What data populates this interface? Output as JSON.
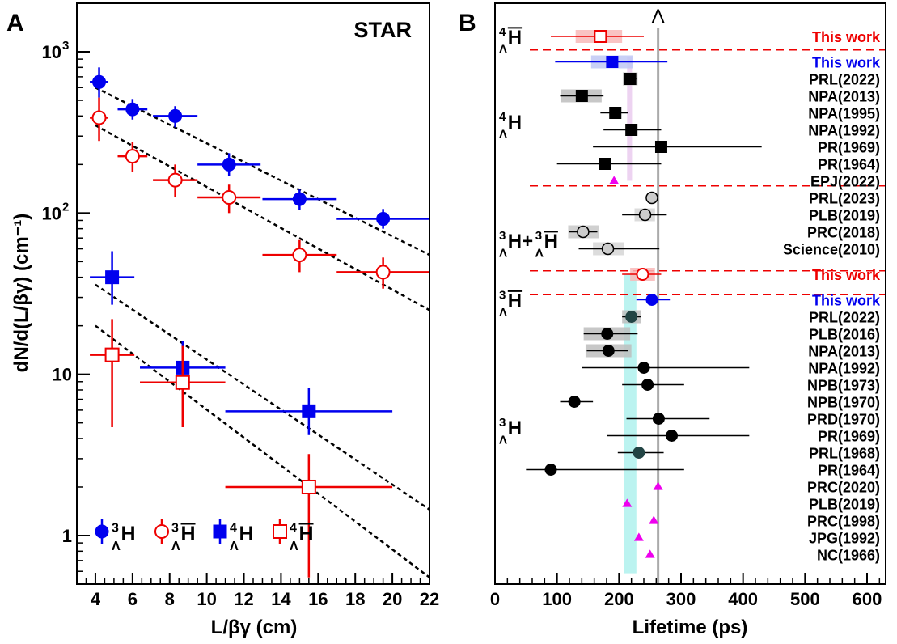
{
  "chart_data": [
    {
      "panel_label": "A",
      "type": "scatter",
      "annotation": "STAR",
      "xlabel": "L/βγ (cm)",
      "ylabel": "dN/d(L/βγ) (cm⁻¹)",
      "xlim": [
        3,
        22
      ],
      "ylim": [
        0.5,
        2000
      ],
      "yscale": "log",
      "xticks": [
        4,
        6,
        8,
        10,
        12,
        14,
        16,
        18,
        20,
        22
      ],
      "yticks": [
        {
          "value": 1,
          "label": "1",
          "exp": ""
        },
        {
          "value": 10,
          "label": "10",
          "exp": ""
        },
        {
          "value": 100,
          "label": "10",
          "exp": "2"
        },
        {
          "value": 1000,
          "label": "10",
          "exp": "3"
        }
      ],
      "legend_position": "bottom",
      "series": [
        {
          "name": "³ΛH",
          "legend_main": "H",
          "legend_sup": "3",
          "legend_sub": "Λ",
          "legend_bar": false,
          "color": "#0000ee",
          "marker": "circle",
          "filled": true,
          "points": [
            {
              "x": 4.2,
              "y": 650,
              "xerr": [
                0.5,
                0.5
              ],
              "yerr": [
                520,
                800
              ]
            },
            {
              "x": 6.0,
              "y": 440,
              "xerr": [
                0.8,
                0.8
              ],
              "yerr": [
                380,
                510
              ]
            },
            {
              "x": 8.3,
              "y": 400,
              "xerr": [
                1.2,
                1.2
              ],
              "yerr": [
                340,
                460
              ]
            },
            {
              "x": 11.2,
              "y": 200,
              "xerr": [
                1.7,
                1.7
              ],
              "yerr": [
                170,
                235
              ]
            },
            {
              "x": 15.0,
              "y": 122,
              "xerr": [
                2.0,
                2.0
              ],
              "yerr": [
                105,
                140
              ]
            },
            {
              "x": 19.5,
              "y": 92,
              "xerr": [
                2.5,
                2.5
              ],
              "yerr": [
                80,
                106
              ]
            }
          ]
        },
        {
          "name": "³ΛH̄",
          "legend_main": "H",
          "legend_sup": "3",
          "legend_sub": "Λ",
          "legend_bar": true,
          "color": "#ee0000",
          "marker": "circle",
          "filled": false,
          "points": [
            {
              "x": 4.2,
              "y": 390,
              "xerr": [
                0.5,
                0.5
              ],
              "yerr": [
                280,
                520
              ]
            },
            {
              "x": 6.0,
              "y": 225,
              "xerr": [
                0.8,
                0.8
              ],
              "yerr": [
                180,
                275
              ]
            },
            {
              "x": 8.3,
              "y": 160,
              "xerr": [
                1.2,
                1.2
              ],
              "yerr": [
                125,
                200
              ]
            },
            {
              "x": 11.2,
              "y": 125,
              "xerr": [
                1.7,
                1.7
              ],
              "yerr": [
                100,
                150
              ]
            },
            {
              "x": 15.0,
              "y": 55,
              "xerr": [
                2.0,
                2.0
              ],
              "yerr": [
                43,
                68
              ]
            },
            {
              "x": 19.5,
              "y": 43,
              "xerr": [
                2.5,
                2.5
              ],
              "yerr": [
                34,
                53
              ]
            }
          ]
        },
        {
          "name": "⁴ΛH",
          "legend_main": "H",
          "legend_sup": "4",
          "legend_sub": "Λ",
          "legend_bar": false,
          "color": "#0000ee",
          "marker": "square",
          "filled": true,
          "points": [
            {
              "x": 4.9,
              "y": 40,
              "xerr": [
                1.2,
                1.2
              ],
              "yerr": [
                27,
                58
              ]
            },
            {
              "x": 8.7,
              "y": 11,
              "xerr": [
                2.3,
                2.3
              ],
              "yerr": [
                7.5,
                16
              ]
            },
            {
              "x": 15.5,
              "y": 5.9,
              "xerr": [
                4.5,
                4.5
              ],
              "yerr": [
                4.2,
                8.2
              ]
            }
          ]
        },
        {
          "name": "⁴ΛH̄",
          "legend_main": "H",
          "legend_sup": "4",
          "legend_sub": "Λ",
          "legend_bar": true,
          "color": "#ee0000",
          "marker": "square",
          "filled": false,
          "points": [
            {
              "x": 4.9,
              "y": 13.2,
              "xerr": [
                1.2,
                1.2
              ],
              "yerr": [
                4.7,
                22
              ]
            },
            {
              "x": 8.7,
              "y": 8.9,
              "xerr": [
                2.3,
                2.3
              ],
              "yerr": [
                4.7,
                15
              ]
            },
            {
              "x": 15.5,
              "y": 2.0,
              "xerr": [
                4.5,
                4.5
              ],
              "yerr": [
                0.55,
                3.2
              ]
            }
          ]
        }
      ],
      "fit_lines": [
        {
          "x": [
            4,
            22
          ],
          "y": [
            600,
            55
          ]
        },
        {
          "x": [
            4,
            22
          ],
          "y": [
            350,
            25
          ]
        },
        {
          "x": [
            4,
            22
          ],
          "y": [
            36,
            1.45
          ]
        },
        {
          "x": [
            4,
            22
          ],
          "y": [
            20,
            0.55
          ]
        }
      ]
    },
    {
      "panel_label": "B",
      "type": "scatter",
      "xlabel": "Lifetime (ps)",
      "xlim": [
        0,
        630
      ],
      "xticks": [
        0,
        100,
        200,
        300,
        400,
        500,
        600
      ],
      "reference_line": {
        "label": "Λ",
        "x": 263
      },
      "group_labels": [
        {
          "main": "H",
          "sup": "4",
          "sub": "Λ",
          "bar": true,
          "slot": 0
        },
        {
          "main": "H",
          "sup": "4",
          "sub": "Λ",
          "bar": false,
          "slot": 5
        },
        {
          "main": "H+",
          "sup": "3",
          "sub": "Λ",
          "bar": false,
          "slot": 12,
          "extra": {
            "main": "H",
            "sup": "3",
            "sub": "Λ",
            "bar": true
          }
        },
        {
          "main": "H",
          "sup": "3",
          "sub": "Λ",
          "bar": true,
          "slot": 15.5
        },
        {
          "main": "H",
          "sup": "3",
          "sub": "Λ",
          "bar": false,
          "slot": 23
        }
      ],
      "dashed_separators": [
        0.8,
        8.8,
        13.8,
        15.2
      ],
      "bands": [
        {
          "x0": 213,
          "x1": 221,
          "slot0": 1.2,
          "slot1": 8.5,
          "color": "#e8c8ee"
        },
        {
          "x0": 208,
          "x1": 228,
          "slot0": 14.0,
          "slot1": 31.6,
          "color": "#aaf0ec"
        }
      ],
      "entries": [
        {
          "label": "This work",
          "label_color": "#ee0000",
          "slot": 0,
          "value": 170,
          "err": [
            90,
            240
          ],
          "sys": [
            130,
            205
          ],
          "marker": "square",
          "filled": false,
          "color": "#ee0000",
          "sys_color": "#f8b8b8"
        },
        {
          "label": "This work",
          "label_color": "#0000ee",
          "slot": 1.5,
          "value": 189,
          "err": [
            97,
            278
          ],
          "sys": [
            155,
            222
          ],
          "marker": "square",
          "filled": true,
          "color": "#0000ee",
          "sys_color": "#c0c8f4"
        },
        {
          "label": "PRL(2022)",
          "label_color": "#000000",
          "slot": 2.5,
          "value": 218,
          "err": [
            208,
            228
          ],
          "sys": [
            206,
            230
          ],
          "marker": "square",
          "filled": true,
          "color": "#000000",
          "sys_color": "#bdbdbd"
        },
        {
          "label": "NPA(2013)",
          "label_color": "#000000",
          "slot": 3.5,
          "value": 140,
          "err": [
            105,
            175
          ],
          "sys": [
            106,
            172
          ],
          "marker": "square",
          "filled": true,
          "color": "#000000",
          "sys_color": "#bdbdbd"
        },
        {
          "label": "NPA(1995)",
          "label_color": "#000000",
          "slot": 4.5,
          "value": 194,
          "err": [
            170,
            215
          ],
          "sys": null,
          "marker": "square",
          "filled": true,
          "color": "#000000",
          "sys_color": null
        },
        {
          "label": "NPA(1992)",
          "label_color": "#000000",
          "slot": 5.5,
          "value": 220,
          "err": [
            175,
            268
          ],
          "sys": null,
          "marker": "square",
          "filled": true,
          "color": "#000000",
          "sys_color": null
        },
        {
          "label": "PR(1969)",
          "label_color": "#000000",
          "slot": 6.5,
          "value": 268,
          "err": [
            158,
            430
          ],
          "sys": null,
          "marker": "square",
          "filled": true,
          "color": "#000000",
          "sys_color": null
        },
        {
          "label": "PR(1964)",
          "label_color": "#000000",
          "slot": 7.5,
          "value": 178,
          "err": [
            100,
            268
          ],
          "sys": null,
          "marker": "square",
          "filled": true,
          "color": "#000000",
          "sys_color": null
        },
        {
          "label": "EPJ(2022)",
          "label_color": "#000000",
          "slot": 8.5,
          "value": 192,
          "err": null,
          "sys": null,
          "marker": "triangle",
          "filled": true,
          "color": "#ee00ee",
          "sys_color": null
        },
        {
          "label": "PRL(2023)",
          "label_color": "#000000",
          "slot": 9.5,
          "value": 253,
          "err": [
            245,
            262
          ],
          "sys": null,
          "marker": "circle",
          "filled": true,
          "color": "#cccccc",
          "sys_color": null
        },
        {
          "label": "PLB(2019)",
          "label_color": "#000000",
          "slot": 10.5,
          "value": 242,
          "err": [
            205,
            277
          ],
          "sys": [
            225,
            258
          ],
          "marker": "circle",
          "filled": true,
          "color": "#cccccc",
          "sys_color": "#d6d6d6"
        },
        {
          "label": "PRC(2018)",
          "label_color": "#000000",
          "slot": 11.5,
          "value": 142,
          "err": [
            120,
            165
          ],
          "sys": [
            118,
            168
          ],
          "marker": "circle",
          "filled": true,
          "color": "#cccccc",
          "sys_color": "#c8c8c8"
        },
        {
          "label": "Science(2010)",
          "label_color": "#000000",
          "slot": 12.5,
          "value": 182,
          "err": [
            135,
            265
          ],
          "sys": [
            158,
            208
          ],
          "marker": "circle",
          "filled": true,
          "color": "#cccccc",
          "sys_color": "#d6d6d6"
        },
        {
          "label": "This work",
          "label_color": "#ee0000",
          "slot": 14.0,
          "value": 238,
          "err": [
            205,
            268
          ],
          "sys": [
            218,
            258
          ],
          "marker": "circle",
          "filled": false,
          "color": "#ee0000",
          "sys_color": "#f8b8b8"
        },
        {
          "label": "This work",
          "label_color": "#0000ee",
          "slot": 15.5,
          "value": 253,
          "err": [
            228,
            282
          ],
          "sys": null,
          "marker": "circle",
          "filled": true,
          "color": "#0000ee",
          "sys_color": null
        },
        {
          "label": "PRL(2022)",
          "label_color": "#000000",
          "slot": 16.5,
          "value": 220,
          "err": [
            205,
            236
          ],
          "sys": [
            205,
            235
          ],
          "marker": "circle",
          "filled": true,
          "color": "#224444",
          "sys_color": "#bdbdbd"
        },
        {
          "label": "PLB(2016)",
          "label_color": "#000000",
          "slot": 17.5,
          "value": 181,
          "err": [
            143,
            230
          ],
          "sys": [
            143,
            218
          ],
          "marker": "circle",
          "filled": true,
          "color": "#000000",
          "sys_color": "#bdbdbd"
        },
        {
          "label": "NPA(2013)",
          "label_color": "#000000",
          "slot": 18.5,
          "value": 183,
          "err": [
            148,
            215
          ],
          "sys": [
            146,
            220
          ],
          "marker": "circle",
          "filled": true,
          "color": "#000000",
          "sys_color": "#bdbdbd"
        },
        {
          "label": "NPA(1992)",
          "label_color": "#000000",
          "slot": 19.5,
          "value": 240,
          "err": [
            140,
            410
          ],
          "sys": null,
          "marker": "circle",
          "filled": true,
          "color": "#000000",
          "sys_color": null
        },
        {
          "label": "NPB(1973)",
          "label_color": "#000000",
          "slot": 20.5,
          "value": 246,
          "err": [
            205,
            305
          ],
          "sys": null,
          "marker": "circle",
          "filled": true,
          "color": "#000000",
          "sys_color": null
        },
        {
          "label": "NPB(1970)",
          "label_color": "#000000",
          "slot": 21.5,
          "value": 128,
          "err": [
            105,
            158
          ],
          "sys": null,
          "marker": "circle",
          "filled": true,
          "color": "#000000",
          "sys_color": null
        },
        {
          "label": "PRD(1970)",
          "label_color": "#000000",
          "slot": 22.5,
          "value": 264,
          "err": [
            212,
            346
          ],
          "sys": null,
          "marker": "circle",
          "filled": true,
          "color": "#000000",
          "sys_color": null
        },
        {
          "label": "PR(1969)",
          "label_color": "#000000",
          "slot": 23.5,
          "value": 285,
          "err": [
            180,
            410
          ],
          "sys": null,
          "marker": "circle",
          "filled": true,
          "color": "#000000",
          "sys_color": null
        },
        {
          "label": "PRL(1968)",
          "label_color": "#000000",
          "slot": 24.5,
          "value": 232,
          "err": [
            198,
            272
          ],
          "sys": null,
          "marker": "circle",
          "filled": true,
          "color": "#224444",
          "sys_color": null
        },
        {
          "label": "PR(1964)",
          "label_color": "#000000",
          "slot": 25.5,
          "value": 90,
          "err": [
            50,
            305
          ],
          "sys": null,
          "marker": "circle",
          "filled": true,
          "color": "#000000",
          "sys_color": null
        },
        {
          "label": "PRC(2020)",
          "label_color": "#000000",
          "slot": 26.5,
          "value": 263,
          "err": null,
          "sys": null,
          "marker": "triangle",
          "filled": true,
          "color": "#ee00ee",
          "sys_color": null
        },
        {
          "label": "PLB(2019)",
          "label_color": "#000000",
          "slot": 27.5,
          "value": 213,
          "err": null,
          "sys": null,
          "marker": "triangle",
          "filled": true,
          "color": "#ee00ee",
          "sys_color": null
        },
        {
          "label": "PRC(1998)",
          "label_color": "#000000",
          "slot": 28.5,
          "value": 256,
          "err": null,
          "sys": null,
          "marker": "triangle",
          "filled": true,
          "color": "#ee00ee",
          "sys_color": null
        },
        {
          "label": "JPG(1992)",
          "label_color": "#000000",
          "slot": 29.5,
          "value": 232,
          "err": null,
          "sys": null,
          "marker": "triangle",
          "filled": true,
          "color": "#ee00ee",
          "sys_color": null
        },
        {
          "label": "NC(1966)",
          "label_color": "#000000",
          "slot": 30.5,
          "value": 250,
          "err": null,
          "sys": null,
          "marker": "triangle",
          "filled": true,
          "color": "#ee00ee",
          "sys_color": null
        }
      ]
    }
  ]
}
